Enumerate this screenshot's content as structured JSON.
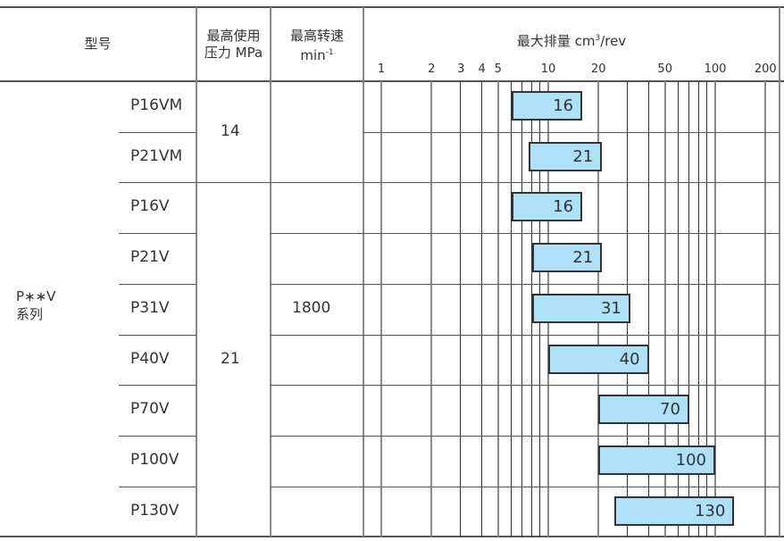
{
  "header": {
    "model": "型号",
    "pressure_line1": "最高使用",
    "pressure_line2": "压力 MPa",
    "speed_line1": "最高转速",
    "speed_line2": "min",
    "speed_sup": "-1",
    "chart_title": "最大排量 cm",
    "chart_title_sup": "3",
    "chart_title_unit": "/rev"
  },
  "group": {
    "line1": "P∗∗V",
    "line2": "系列"
  },
  "speed": "1800",
  "pressures": [
    "14",
    "21"
  ],
  "chart_data": {
    "type": "bar",
    "orientation": "horizontal-range",
    "title": "最大排量 cm3/rev",
    "xscale": "log",
    "xlim": [
      0.9,
      230
    ],
    "ticks": [
      "1",
      "2",
      "3",
      "4",
      "5",
      "10",
      "20",
      "50",
      "100",
      "200"
    ],
    "grid": true,
    "categories": [
      "P16VM",
      "P21VM",
      "P16V",
      "P21V",
      "P31V",
      "P40V",
      "P70V",
      "P100V",
      "P130V"
    ],
    "start": [
      6,
      7.6,
      6,
      8,
      8,
      10,
      20,
      20,
      25
    ],
    "values": [
      16,
      21,
      16,
      21,
      31,
      40,
      70,
      100,
      130
    ],
    "labels": [
      "16",
      "21",
      "16",
      "21",
      "31",
      "40",
      "70",
      "100",
      "130"
    ],
    "bar_color": "#aee0f8"
  }
}
